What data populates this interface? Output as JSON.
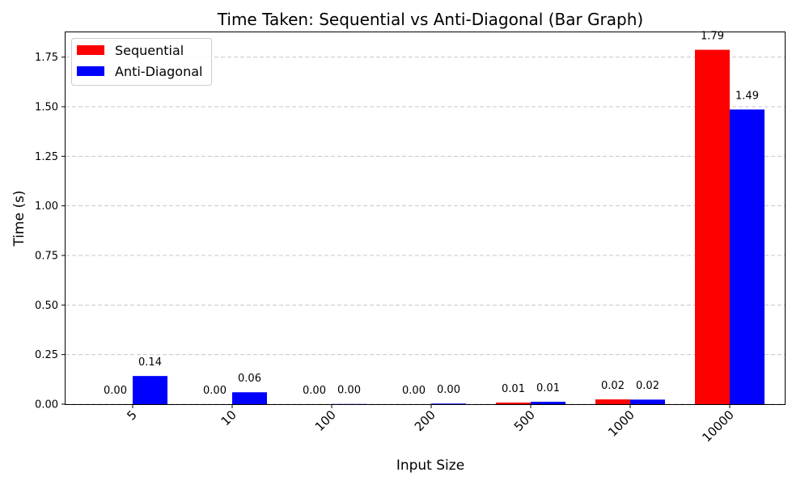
{
  "chart_data": {
    "type": "bar",
    "title": "Time Taken: Sequential vs Anti-Diagonal (Bar Graph)",
    "xlabel": "Input Size",
    "ylabel": "Time (s)",
    "categories": [
      "5",
      "10",
      "100",
      "200",
      "500",
      "1000",
      "10000"
    ],
    "series": [
      {
        "name": "Sequential",
        "color": "#ff0000",
        "values": [
          0.0,
          0.0,
          0.0,
          0.0,
          0.008,
          0.024,
          1.787
        ],
        "labels": [
          "0.00",
          "0.00",
          "0.00",
          "0.00",
          "0.01",
          "0.02",
          "1.79"
        ]
      },
      {
        "name": "Anti-Diagonal",
        "color": "#0000ff",
        "values": [
          0.142,
          0.06,
          0.0008,
          0.003,
          0.012,
          0.023,
          1.486
        ],
        "labels": [
          "0.14",
          "0.06",
          "0.00",
          "0.00",
          "0.01",
          "0.02",
          "1.49"
        ]
      }
    ],
    "ylim": [
      0,
      1.875
    ],
    "yticks": [
      0.0,
      0.25,
      0.5,
      0.75,
      1.0,
      1.25,
      1.5,
      1.75
    ],
    "ytick_labels": [
      "0.00",
      "0.25",
      "0.50",
      "0.75",
      "1.00",
      "1.25",
      "1.50",
      "1.75"
    ],
    "grid": "y-dashed",
    "legend_position": "top-left",
    "xtick_rotation": -45
  }
}
